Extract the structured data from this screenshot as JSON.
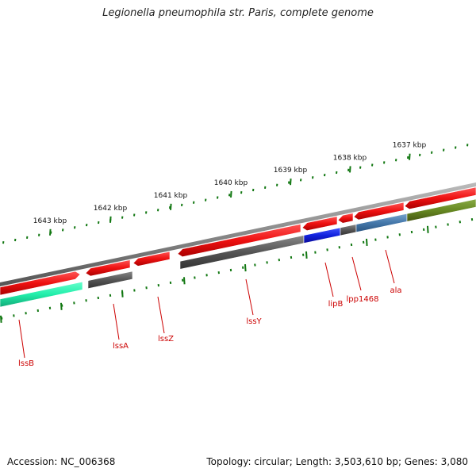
{
  "title": "Legionella pneumophila str. Paris, complete genome",
  "footer": {
    "accession": "Accession: NC_006368",
    "info": "Topology: circular; Length: 3,503,610 bp; Genes: 3,080"
  },
  "colors": {
    "forward_gene": "#ee1111",
    "reverse_gene": "#555555",
    "blue_gene": "#1122dd",
    "steel_gene": "#4477aa",
    "teal_gene": "#22eeaa",
    "olive_gene": "#668822",
    "backbone": "#888888",
    "ticks": "#117711",
    "labels": "#cc0000"
  },
  "scale": {
    "unit": "kbp",
    "ticks": [
      {
        "value": 1643,
        "label": "1643 kbp"
      },
      {
        "value": 1642,
        "label": "1642 kbp"
      },
      {
        "value": 1641,
        "label": "1641 kbp"
      },
      {
        "value": 1640,
        "label": "1640 kbp"
      },
      {
        "value": 1639,
        "label": "1639 kbp"
      },
      {
        "value": 1638,
        "label": "1638 kbp"
      },
      {
        "value": 1637,
        "label": "1637 kbp"
      }
    ]
  },
  "gene_labels": [
    {
      "name": "lssB"
    },
    {
      "name": "lssA"
    },
    {
      "name": "lssZ"
    },
    {
      "name": "lssY"
    },
    {
      "name": "lipB"
    },
    {
      "name": "lpp1468"
    },
    {
      "name": "ala"
    }
  ]
}
